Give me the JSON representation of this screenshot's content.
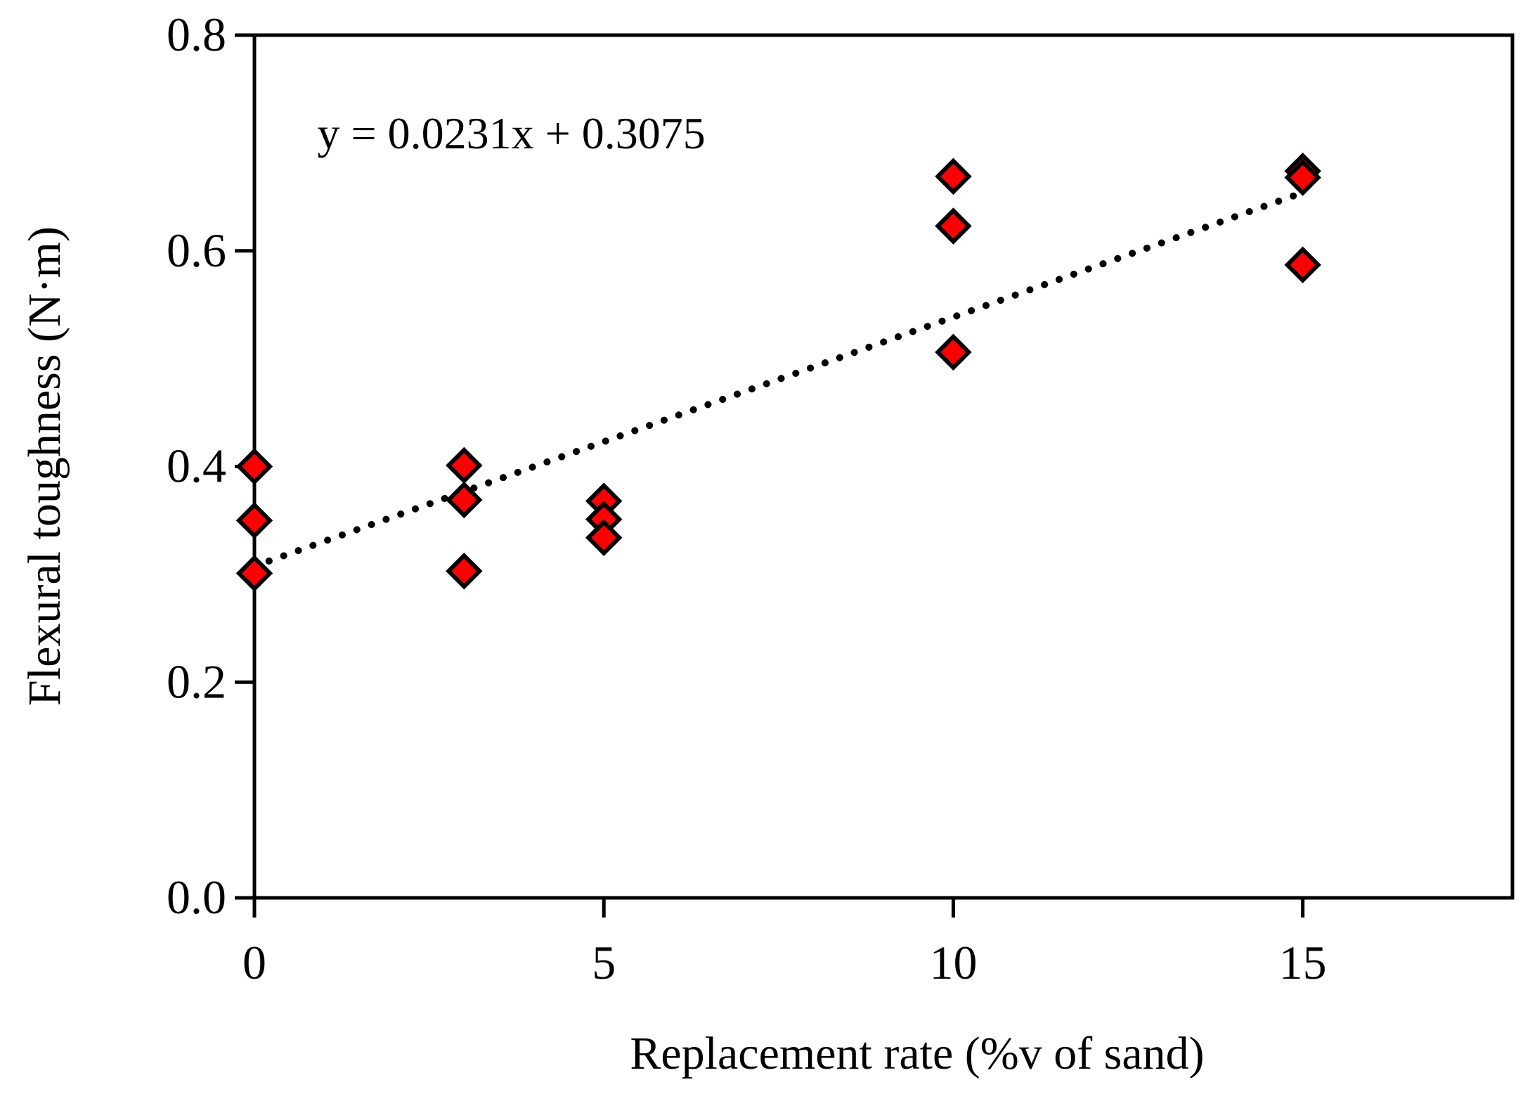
{
  "chart_data": {
    "type": "scatter",
    "title": "",
    "xlabel": "Replacement rate  (%v of sand)",
    "ylabel": "Flexural toughness (N·m)",
    "xlim": [
      0,
      18
    ],
    "ylim": [
      0,
      0.8
    ],
    "x_ticks": [
      0,
      5,
      10,
      15
    ],
    "x_tick_labels": [
      "0",
      "5",
      "10",
      "15"
    ],
    "y_ticks": [
      0,
      0.2,
      0.4,
      0.6,
      0.8
    ],
    "y_tick_labels": [
      "0.0",
      "0.2",
      "0.4",
      "0.6",
      "0.8"
    ],
    "grid": false,
    "series": [
      {
        "name": "Flexural toughness",
        "marker": "diamond",
        "color": "#ff0000",
        "edge_color": "#000000",
        "points": [
          {
            "x": 0,
            "y": 0.4
          },
          {
            "x": 0,
            "y": 0.35
          },
          {
            "x": 0,
            "y": 0.301
          },
          {
            "x": 3,
            "y": 0.401
          },
          {
            "x": 3,
            "y": 0.369
          },
          {
            "x": 3,
            "y": 0.303
          },
          {
            "x": 5,
            "y": 0.368
          },
          {
            "x": 5,
            "y": 0.351
          },
          {
            "x": 5,
            "y": 0.334
          },
          {
            "x": 10,
            "y": 0.669
          },
          {
            "x": 10,
            "y": 0.623
          },
          {
            "x": 10,
            "y": 0.506
          },
          {
            "x": 15,
            "y": 0.674
          },
          {
            "x": 15,
            "y": 0.668
          },
          {
            "x": 15,
            "y": 0.587
          }
        ]
      }
    ],
    "trendline": {
      "type": "linear",
      "slope": 0.0231,
      "intercept": 0.3075,
      "x_range": [
        0,
        15
      ],
      "style": "dotted",
      "color": "#000000"
    },
    "annotations": [
      {
        "text": "y = 0.0231x + 0.3075",
        "anchor_x": 0.9,
        "anchor_y": 0.695
      }
    ]
  }
}
